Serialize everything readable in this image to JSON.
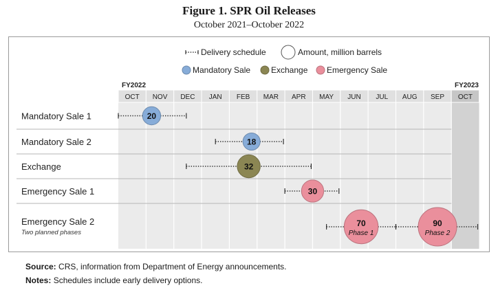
{
  "title": "Figure 1. SPR Oil Releases",
  "subtitle": "October 2021–October 2022",
  "legend": {
    "delivery": "Delivery schedule",
    "amount": "Amount, million barrels",
    "categories": [
      {
        "name": "Mandatory Sale",
        "color": "#87acd8"
      },
      {
        "name": "Exchange",
        "color": "#8b8653"
      },
      {
        "name": "Emergency Sale",
        "color": "#ea8f9c"
      }
    ]
  },
  "fy_labels": [
    "FY2022",
    "FY2023"
  ],
  "chart_data": {
    "type": "scatter",
    "months": [
      "OCT",
      "NOV",
      "DEC",
      "JAN",
      "FEB",
      "MAR",
      "APR",
      "MAY",
      "JUN",
      "JUL",
      "AUG",
      "SEP",
      "OCT"
    ],
    "rows": [
      {
        "label": "Mandatory Sale 1",
        "sublabel": "",
        "category": "Mandatory Sale",
        "items": [
          {
            "start": 0.0,
            "end": 2.45,
            "center": 1.2,
            "value": 20,
            "phase": ""
          }
        ]
      },
      {
        "label": "Mandatory Sale 2",
        "sublabel": "",
        "category": "Mandatory Sale",
        "items": [
          {
            "start": 3.5,
            "end": 5.95,
            "center": 4.8,
            "value": 18,
            "phase": ""
          }
        ]
      },
      {
        "label": "Exchange",
        "sublabel": "",
        "category": "Exchange",
        "items": [
          {
            "start": 2.45,
            "end": 6.95,
            "center": 4.7,
            "value": 32,
            "phase": ""
          }
        ]
      },
      {
        "label": "Emergency Sale 1",
        "sublabel": "",
        "category": "Emergency Sale",
        "items": [
          {
            "start": 6.0,
            "end": 7.95,
            "center": 7.0,
            "value": 30,
            "phase": ""
          }
        ]
      },
      {
        "label": "Emergency Sale 2",
        "sublabel": "Two planned phases",
        "category": "Emergency Sale",
        "items": [
          {
            "start": 7.5,
            "end": 10.0,
            "center": 8.75,
            "value": 70,
            "phase": "Phase 1"
          },
          {
            "start": 10.0,
            "end": 12.95,
            "center": 11.5,
            "value": 90,
            "phase": "Phase 2"
          }
        ]
      }
    ]
  },
  "footer": {
    "source_label": "Source:",
    "source_text": "CRS, information from Department of Energy announcements.",
    "notes_label": "Notes:",
    "notes_text": "Schedules include early delivery options."
  }
}
